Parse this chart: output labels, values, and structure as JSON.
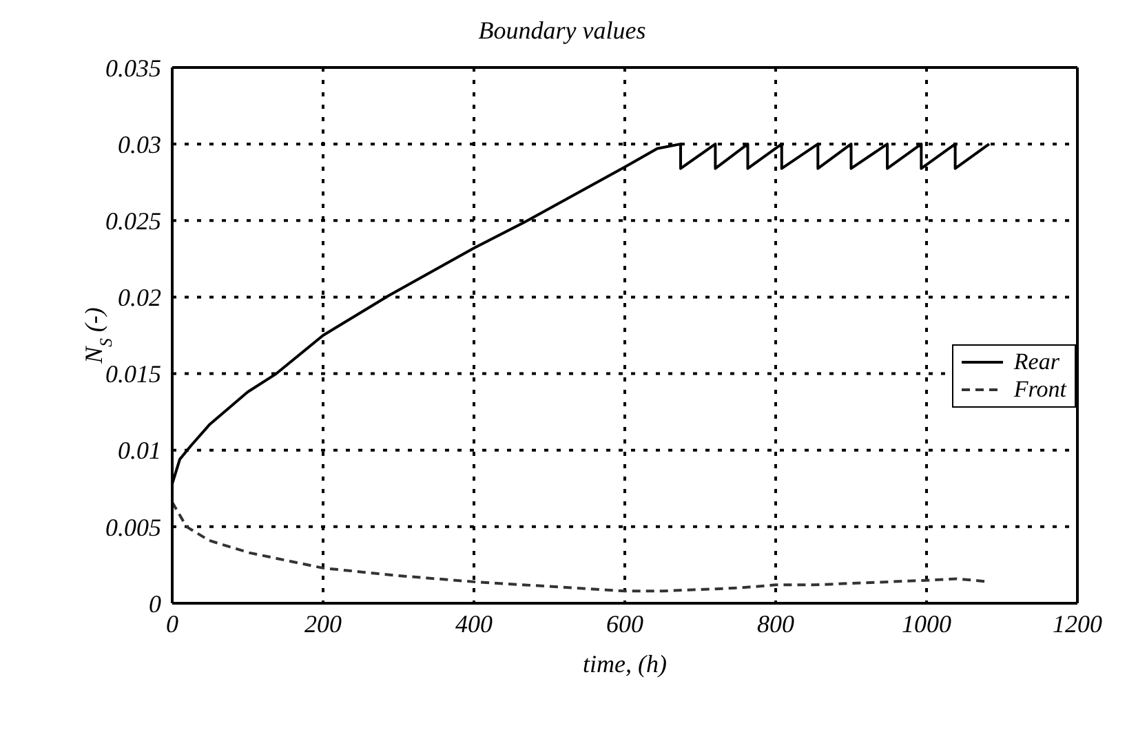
{
  "chart_data": {
    "type": "line",
    "title": "Boundary values",
    "xlabel": "time, (h)",
    "ylabel": "N$_{S}$ (-)",
    "xlim": [
      0,
      1200
    ],
    "xticks": [
      0,
      200,
      400,
      600,
      800,
      1000,
      1200
    ],
    "ylim": [
      0,
      0.035
    ],
    "yticks": [
      0,
      0.005,
      0.01,
      0.015,
      0.02,
      0.025,
      0.03,
      0.035
    ],
    "grid": true,
    "legend": "right",
    "marker": "none",
    "series": [
      {
        "name": "Rear",
        "color": "#000000",
        "line_style": "solid",
        "x": [
          0,
          10,
          25,
          50,
          100,
          138,
          200,
          287,
          400,
          471,
          600,
          643,
          674,
          674,
          720,
          720,
          763,
          763,
          808,
          808,
          856,
          856,
          900,
          900,
          948,
          948,
          993,
          993,
          1038,
          1038,
          1083
        ],
        "values": [
          0.0078,
          0.0094,
          0.0103,
          0.0117,
          0.0138,
          0.015,
          0.0175,
          0.0201,
          0.0232,
          0.025,
          0.0285,
          0.0297,
          0.03,
          0.0284,
          0.03,
          0.0284,
          0.03,
          0.0284,
          0.03,
          0.0284,
          0.03,
          0.0284,
          0.03,
          0.0284,
          0.03,
          0.0284,
          0.03,
          0.0284,
          0.03,
          0.0284,
          0.03
        ]
      },
      {
        "name": "Front",
        "color": "#333333",
        "line_style": "dashed",
        "x": [
          0,
          19,
          49,
          102,
          200,
          300,
          400,
          500,
          600,
          650,
          700,
          750,
          800,
          850,
          900,
          950,
          1000,
          1040,
          1083
        ],
        "values": [
          0.0066,
          0.005,
          0.0041,
          0.0033,
          0.0023,
          0.0018,
          0.0014,
          0.0011,
          0.0008,
          0.0008,
          0.0009,
          0.001,
          0.0012,
          0.0012,
          0.0013,
          0.0014,
          0.0015,
          0.0016,
          0.0014
        ]
      }
    ]
  }
}
